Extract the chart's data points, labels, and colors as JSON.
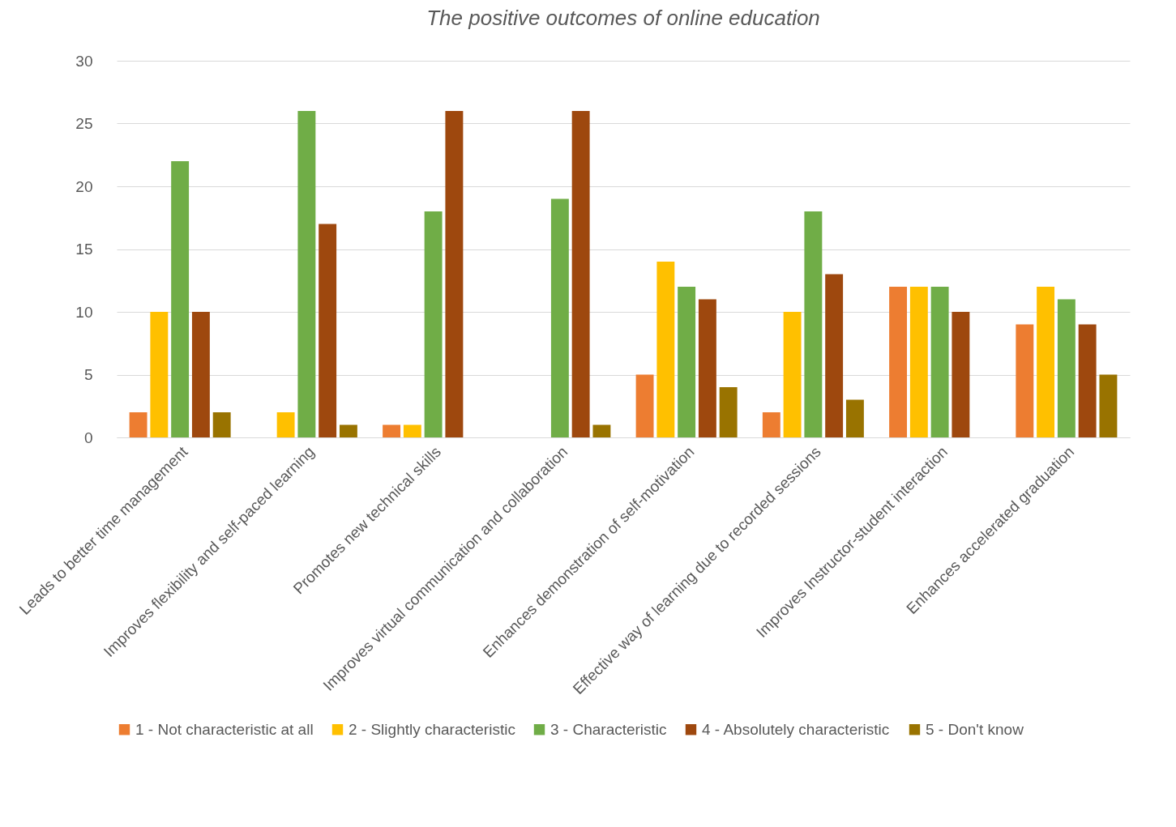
{
  "chart_data": {
    "type": "bar",
    "title": "The positive outcomes of online education",
    "categories": [
      "Leads to better time management",
      "Improves flexibility and self-paced learning",
      "Promotes new technical skills",
      "Improves virtual communication and collaboration",
      "Enhances demonstration of self-motivation",
      "Effective way of learning due to recorded sessions",
      "Improves Instructor-student interaction",
      "Enhances accelerated graduation"
    ],
    "series": [
      {
        "name": "1 - Not characteristic at all",
        "color": "#ed7d31",
        "values": [
          2,
          null,
          1,
          null,
          5,
          2,
          12,
          9
        ]
      },
      {
        "name": "2 - Slightly characteristic",
        "color": "#ffc000",
        "values": [
          10,
          2,
          1,
          null,
          14,
          10,
          12,
          12
        ]
      },
      {
        "name": "3 - Characteristic",
        "color": "#70ad47",
        "values": [
          22,
          26,
          18,
          19,
          12,
          18,
          12,
          11
        ]
      },
      {
        "name": "4 - Absolutely characteristic",
        "color": "#9e480e",
        "values": [
          10,
          17,
          26,
          26,
          11,
          13,
          10,
          9
        ]
      },
      {
        "name": "5 - Don't know",
        "color": "#997300",
        "values": [
          2,
          1,
          null,
          1,
          4,
          3,
          null,
          5
        ]
      }
    ],
    "ylim": [
      0,
      30
    ],
    "yticks": [
      0,
      5,
      10,
      15,
      20,
      25,
      30
    ],
    "grid": "y",
    "legend": "bottom"
  }
}
